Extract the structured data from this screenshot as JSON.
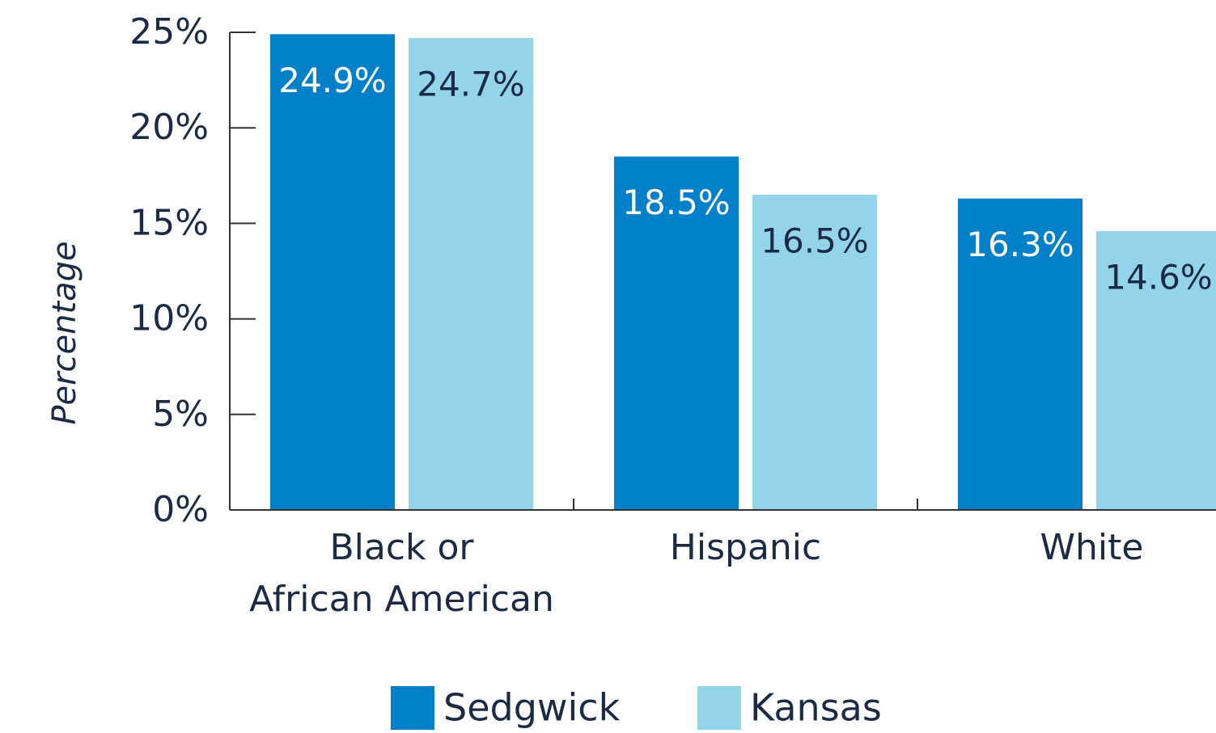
{
  "chart_data": {
    "type": "bar",
    "y_label": "Percentage",
    "categories": [
      "Black or\nAfrican American",
      "Hispanic",
      "White"
    ],
    "series": [
      {
        "name": "Sedgwick",
        "color": "#0080c8",
        "values": [
          24.9,
          18.5,
          16.3
        ],
        "value_labels": [
          "24.9%",
          "18.5%",
          "16.3%"
        ]
      },
      {
        "name": "Kansas",
        "color": "#93d4ea",
        "values": [
          24.7,
          16.5,
          14.6
        ],
        "value_labels": [
          "24.7%",
          "16.5%",
          "14.6%"
        ]
      }
    ],
    "ylim": [
      0,
      25
    ],
    "yticks": [
      {
        "value": 0,
        "label": "0%"
      },
      {
        "value": 5,
        "label": "5%"
      },
      {
        "value": 10,
        "label": "10%"
      },
      {
        "value": 15,
        "label": "15%"
      },
      {
        "value": 20,
        "label": "20%"
      },
      {
        "value": 25,
        "label": "25%"
      }
    ],
    "legend": "bottom"
  }
}
